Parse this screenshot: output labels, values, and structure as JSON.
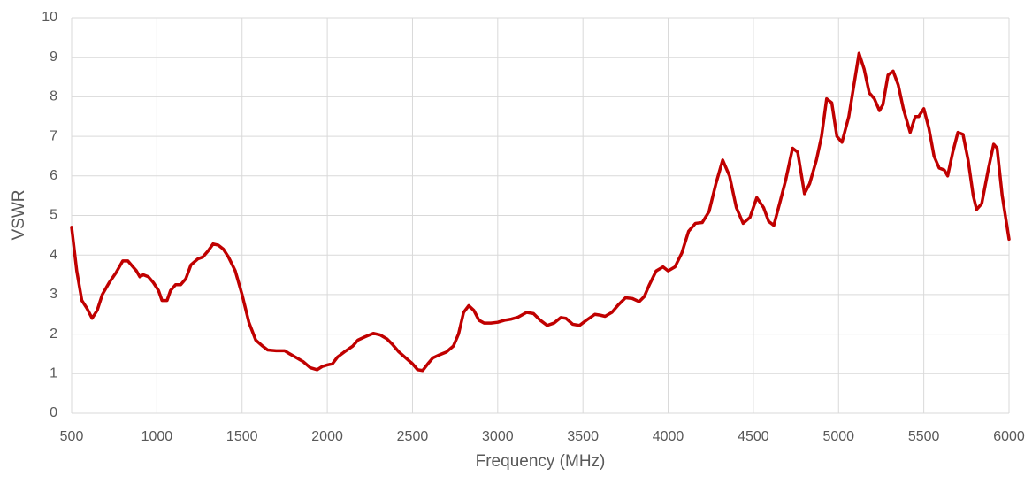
{
  "chart_data": {
    "type": "line",
    "x_label": "Frequency (MHz)",
    "y_label": "VSWR",
    "x": [
      500,
      530,
      560,
      590,
      620,
      650,
      680,
      720,
      760,
      800,
      830,
      860,
      880,
      900,
      920,
      950,
      980,
      1010,
      1030,
      1060,
      1080,
      1110,
      1140,
      1170,
      1200,
      1240,
      1270,
      1300,
      1330,
      1360,
      1390,
      1420,
      1460,
      1500,
      1540,
      1580,
      1620,
      1650,
      1700,
      1750,
      1780,
      1820,
      1860,
      1900,
      1940,
      1970,
      2000,
      2030,
      2060,
      2100,
      2150,
      2180,
      2220,
      2270,
      2310,
      2350,
      2380,
      2420,
      2460,
      2500,
      2530,
      2560,
      2590,
      2620,
      2660,
      2700,
      2740,
      2770,
      2800,
      2830,
      2860,
      2890,
      2920,
      2960,
      3000,
      3040,
      3080,
      3120,
      3170,
      3210,
      3250,
      3290,
      3330,
      3370,
      3400,
      3440,
      3480,
      3520,
      3570,
      3600,
      3630,
      3670,
      3710,
      3750,
      3790,
      3830,
      3860,
      3890,
      3930,
      3970,
      4000,
      4040,
      4080,
      4120,
      4160,
      4200,
      4240,
      4280,
      4320,
      4360,
      4400,
      4440,
      4480,
      4520,
      4560,
      4590,
      4620,
      4660,
      4690,
      4730,
      4760,
      4800,
      4830,
      4870,
      4900,
      4930,
      4960,
      4990,
      5020,
      5060,
      5090,
      5120,
      5150,
      5180,
      5210,
      5240,
      5260,
      5290,
      5320,
      5350,
      5380,
      5420,
      5450,
      5470,
      5500,
      5530,
      5560,
      5590,
      5620,
      5640,
      5670,
      5700,
      5730,
      5760,
      5790,
      5810,
      5840,
      5880,
      5910,
      5930,
      5960,
      6000
    ],
    "values": [
      4.7,
      3.6,
      2.85,
      2.65,
      2.4,
      2.6,
      3.0,
      3.3,
      3.55,
      3.85,
      3.85,
      3.7,
      3.6,
      3.45,
      3.5,
      3.45,
      3.3,
      3.1,
      2.85,
      2.85,
      3.1,
      3.25,
      3.25,
      3.4,
      3.75,
      3.9,
      3.95,
      4.1,
      4.28,
      4.25,
      4.15,
      3.95,
      3.6,
      3.0,
      2.3,
      1.85,
      1.7,
      1.6,
      1.58,
      1.58,
      1.5,
      1.4,
      1.3,
      1.15,
      1.1,
      1.18,
      1.22,
      1.25,
      1.42,
      1.55,
      1.7,
      1.85,
      1.93,
      2.02,
      1.98,
      1.88,
      1.75,
      1.55,
      1.4,
      1.25,
      1.1,
      1.08,
      1.25,
      1.4,
      1.48,
      1.55,
      1.7,
      2.0,
      2.55,
      2.72,
      2.6,
      2.35,
      2.28,
      2.28,
      2.3,
      2.35,
      2.38,
      2.43,
      2.55,
      2.52,
      2.35,
      2.22,
      2.28,
      2.42,
      2.4,
      2.25,
      2.22,
      2.35,
      2.5,
      2.48,
      2.45,
      2.55,
      2.75,
      2.92,
      2.9,
      2.82,
      2.95,
      3.25,
      3.6,
      3.7,
      3.6,
      3.7,
      4.05,
      4.6,
      4.8,
      4.82,
      5.1,
      5.8,
      6.4,
      6.0,
      5.2,
      4.8,
      4.95,
      5.45,
      5.2,
      4.85,
      4.75,
      5.4,
      5.9,
      6.7,
      6.6,
      5.55,
      5.8,
      6.4,
      7.0,
      7.95,
      7.85,
      7.0,
      6.85,
      7.5,
      8.3,
      9.1,
      8.7,
      8.1,
      7.95,
      7.65,
      7.8,
      8.55,
      8.65,
      8.3,
      7.7,
      7.1,
      7.5,
      7.5,
      7.7,
      7.2,
      6.5,
      6.2,
      6.15,
      6.0,
      6.6,
      7.1,
      7.05,
      6.4,
      5.5,
      5.15,
      5.3,
      6.2,
      6.8,
      6.7,
      5.5,
      4.4
    ],
    "color": "#c00000",
    "xlim": [
      500,
      6000
    ],
    "xticks": [
      500,
      1000,
      1500,
      2000,
      2500,
      3000,
      3500,
      4000,
      4500,
      5000,
      5500,
      6000
    ],
    "ylim": [
      0,
      10
    ],
    "yticks": [
      0,
      1,
      2,
      3,
      4,
      5,
      6,
      7,
      8,
      9,
      10
    ],
    "grid": true
  }
}
